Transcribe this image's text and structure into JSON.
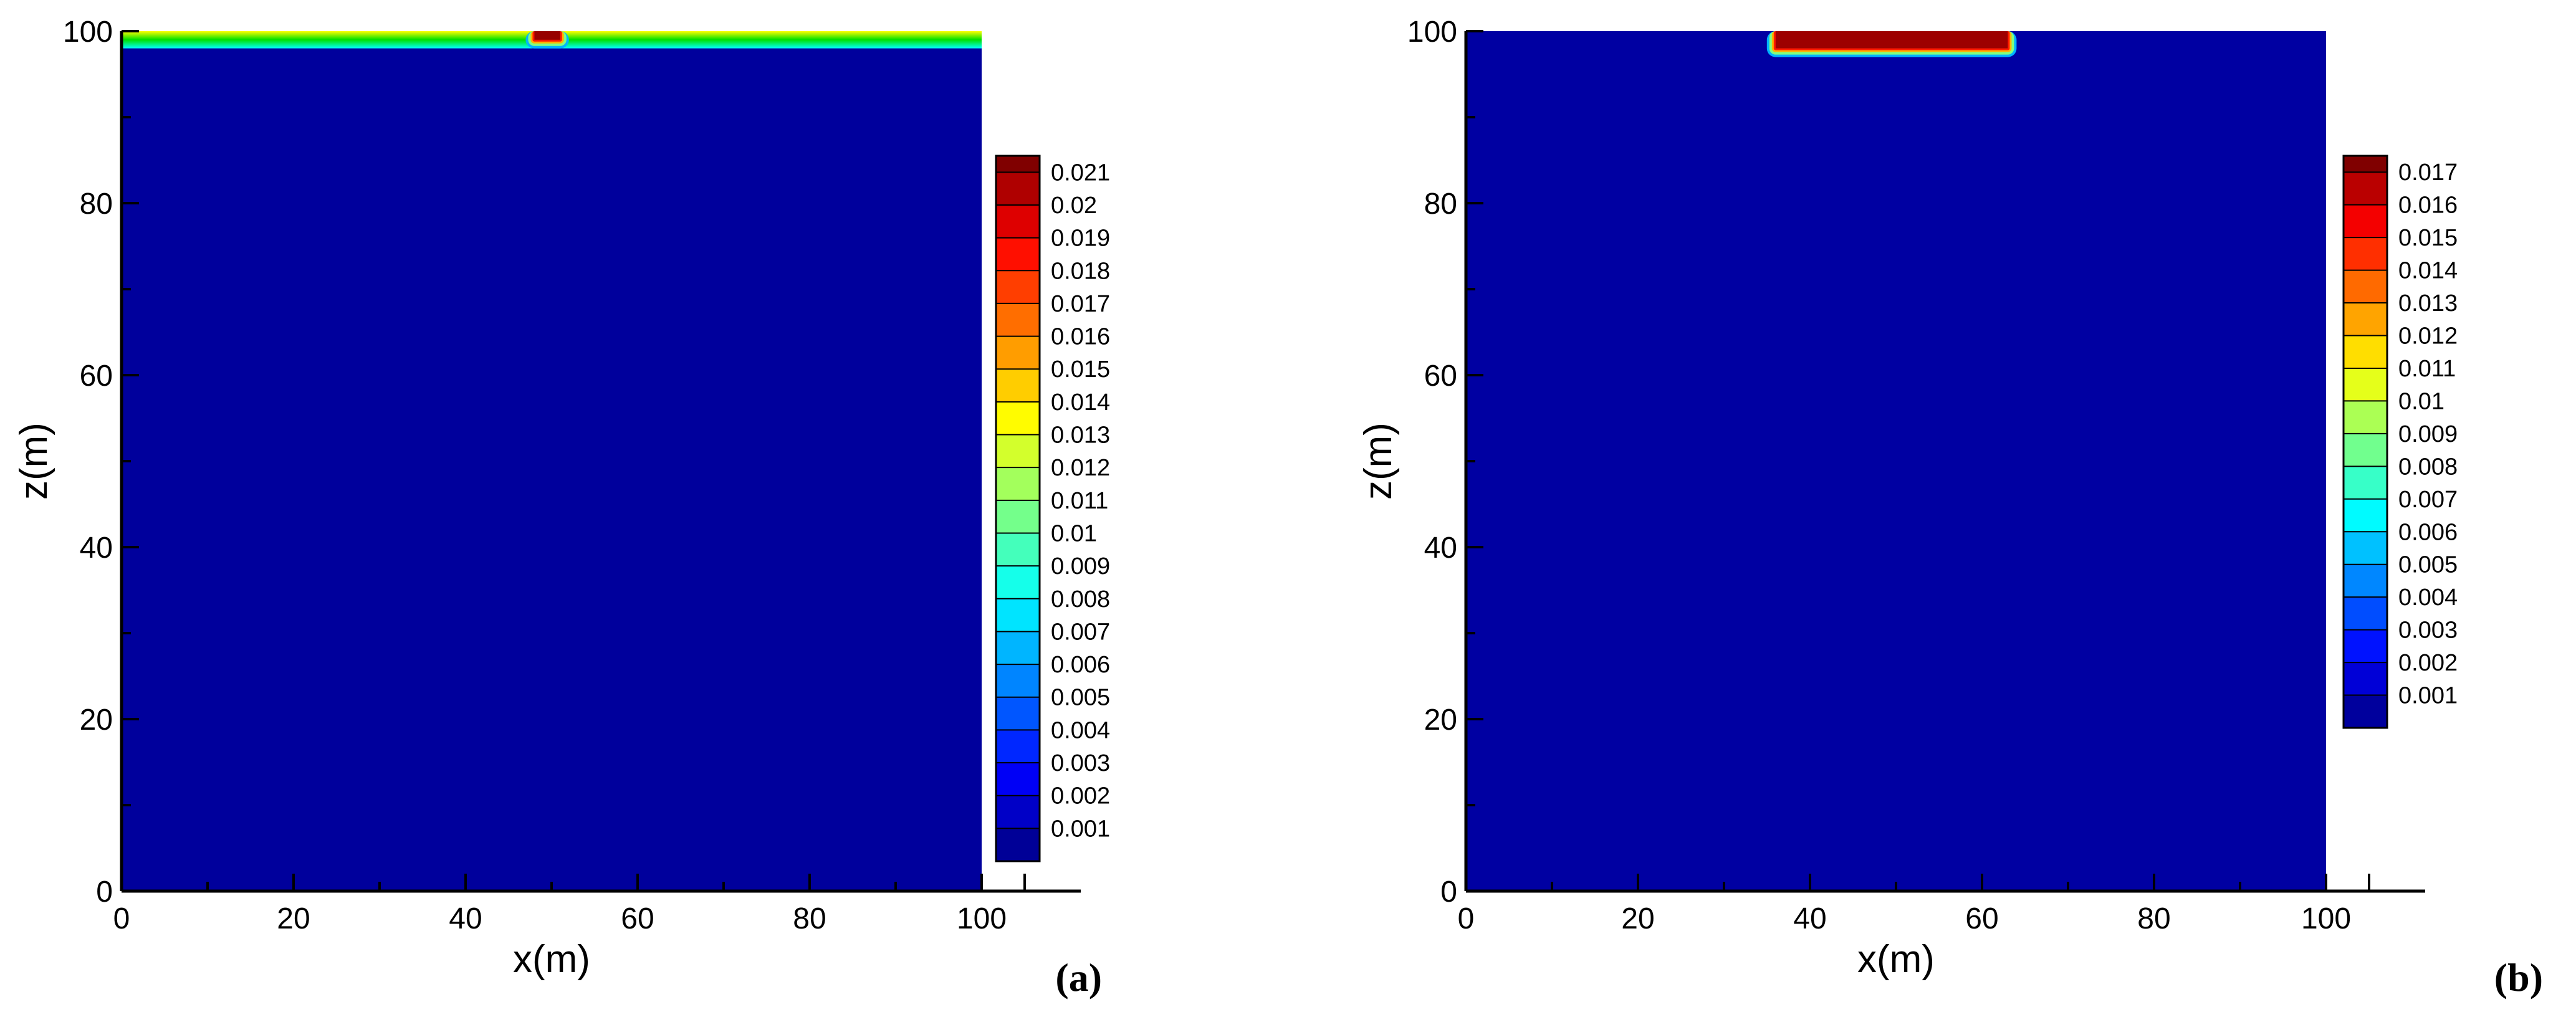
{
  "chart_data": [
    {
      "type": "heatmap",
      "panel_label": "(a)",
      "xlabel": "x(m)",
      "ylabel": "z(m)",
      "xlim": [
        0,
        105
      ],
      "ylim": [
        0,
        100
      ],
      "x_ticks": [
        "0",
        "20",
        "40",
        "60",
        "80",
        "100"
      ],
      "y_ticks": [
        "0",
        "20",
        "40",
        "60",
        "80",
        "100"
      ],
      "x_ticks_unlabeled": [
        105
      ],
      "domain_x": [
        0,
        100
      ],
      "colorbar": {
        "min": 0.0,
        "max": 0.0215,
        "levels": [
          "0.021",
          "0.02",
          "0.019",
          "0.018",
          "0.017",
          "0.016",
          "0.015",
          "0.014",
          "0.013",
          "0.012",
          "0.011",
          "0.01",
          "0.009",
          "0.008",
          "0.007",
          "0.006",
          "0.005",
          "0.004",
          "0.003",
          "0.002",
          "0.001"
        ]
      },
      "field": {
        "background": 0.0006,
        "surface_band": {
          "z_from": 98,
          "z_to": 100,
          "value": 0.011
        },
        "hotspots": [
          {
            "x_from": 48,
            "x_to": 51,
            "z_from": 99,
            "z_to": 100,
            "value": 0.021
          }
        ]
      },
      "colors": {
        "min": "#0000ff",
        "max": "#ff0000"
      }
    },
    {
      "type": "heatmap",
      "panel_label": "(b)",
      "xlabel": "x(m)",
      "ylabel": "z(m)",
      "xlim": [
        0,
        105
      ],
      "ylim": [
        0,
        100
      ],
      "x_ticks": [
        "0",
        "20",
        "40",
        "60",
        "80",
        "100"
      ],
      "y_ticks": [
        "0",
        "20",
        "40",
        "60",
        "80",
        "100"
      ],
      "x_ticks_unlabeled": [
        105
      ],
      "domain_x": [
        0,
        100
      ],
      "colorbar": {
        "min": 0.0,
        "max": 0.0175,
        "levels": [
          "0.017",
          "0.016",
          "0.015",
          "0.014",
          "0.013",
          "0.012",
          "0.011",
          "0.01",
          "0.009",
          "0.008",
          "0.007",
          "0.006",
          "0.005",
          "0.004",
          "0.003",
          "0.002",
          "0.001"
        ]
      },
      "field": {
        "background": 0.0006,
        "surface_band": null,
        "hotspots": [
          {
            "x_from": 36,
            "x_to": 63,
            "z_from": 98,
            "z_to": 100,
            "value": 0.017
          }
        ]
      },
      "colors": {
        "min": "#0000ff",
        "max": "#ff0000"
      }
    }
  ]
}
